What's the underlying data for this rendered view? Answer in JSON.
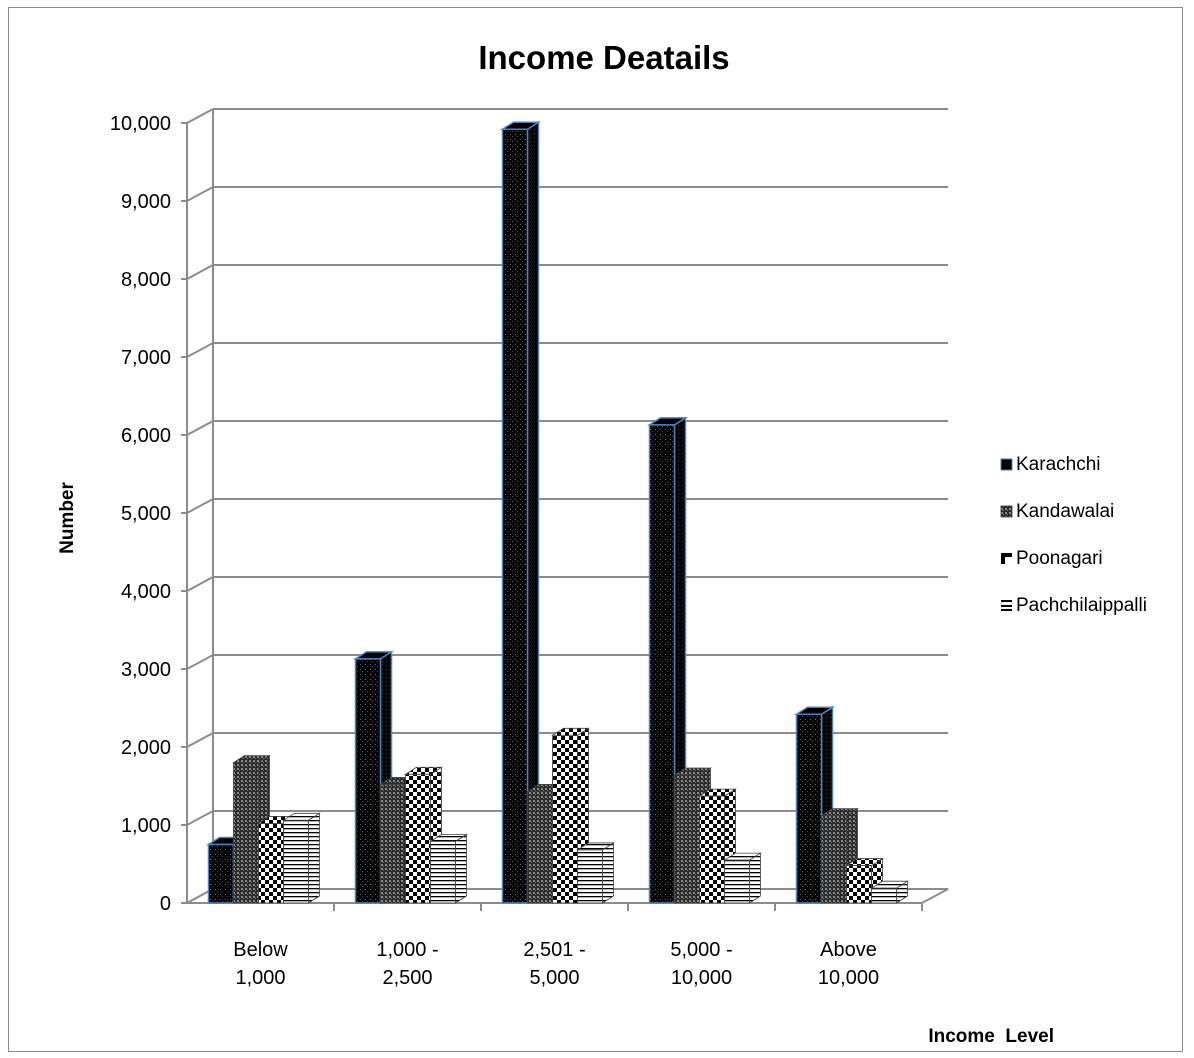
{
  "chart_data": {
    "type": "bar",
    "title": "Income Deatails",
    "xlabel": "Income  Level",
    "ylabel": "Number",
    "ylim": [
      0,
      10000
    ],
    "y_ticks": [
      "0",
      "1,000",
      "2,000",
      "3,000",
      "4,000",
      "5,000",
      "6,000",
      "7,000",
      "8,000",
      "9,000",
      "10,000"
    ],
    "categories": [
      [
        "Below",
        "1,000"
      ],
      [
        "1,000 -",
        "2,500"
      ],
      [
        "2,501 -",
        "5,000"
      ],
      [
        "5,000 -",
        "10,000"
      ],
      [
        "Above",
        "10,000"
      ]
    ],
    "series": [
      {
        "name": "Karachchi",
        "values": [
          750,
          3130,
          9920,
          6130,
          2420
        ],
        "color": "#000000",
        "pattern": "dots"
      },
      {
        "name": "Kandawalai",
        "values": [
          1800,
          1520,
          1430,
          1640,
          1120
        ],
        "color": "#3a3a3a",
        "pattern": "grid"
      },
      {
        "name": "Poonagari",
        "values": [
          1020,
          1650,
          2150,
          1370,
          480
        ],
        "color": "#000000",
        "pattern": "checker"
      },
      {
        "name": "Pachchilaippalli",
        "values": [
          1060,
          790,
          680,
          550,
          190
        ],
        "color": "#ffffff",
        "pattern": "hlines"
      }
    ],
    "grid": true,
    "legend_position": "right"
  }
}
